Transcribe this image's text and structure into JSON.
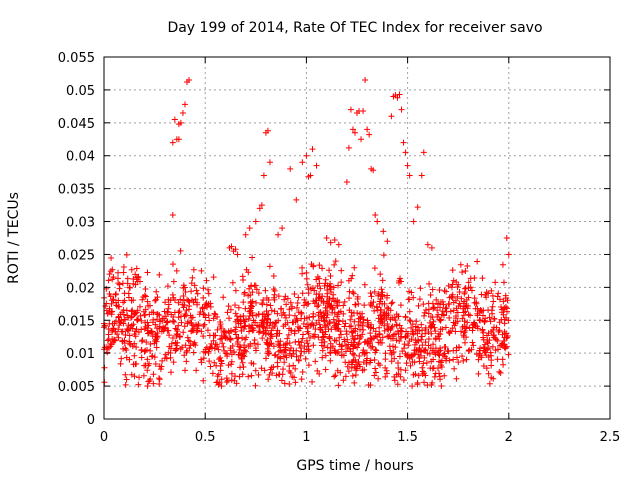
{
  "chart_data": {
    "type": "scatter",
    "title": "Day 199 of 2014, Rate Of TEC Index for receiver savo",
    "xlabel": "GPS time / hours",
    "ylabel": "ROTI / TECUs",
    "xlim": [
      0,
      2.5
    ],
    "ylim": [
      0,
      0.055
    ],
    "xticks": [
      {
        "value": 0,
        "label": "0"
      },
      {
        "value": 0.5,
        "label": "0.5"
      },
      {
        "value": 1,
        "label": "1"
      },
      {
        "value": 1.5,
        "label": "1.5"
      },
      {
        "value": 2,
        "label": "2"
      },
      {
        "value": 2.5,
        "label": "2.5"
      }
    ],
    "yticks": [
      {
        "value": 0,
        "label": "0"
      },
      {
        "value": 0.005,
        "label": "0.005"
      },
      {
        "value": 0.01,
        "label": "0.01"
      },
      {
        "value": 0.015,
        "label": "0.015"
      },
      {
        "value": 0.02,
        "label": "0.02"
      },
      {
        "value": 0.025,
        "label": "0.025"
      },
      {
        "value": 0.03,
        "label": "0.03"
      },
      {
        "value": 0.035,
        "label": "0.035"
      },
      {
        "value": 0.04,
        "label": "0.04"
      },
      {
        "value": 0.045,
        "label": "0.045"
      },
      {
        "value": 0.05,
        "label": "0.05"
      },
      {
        "value": 0.055,
        "label": "0.055"
      }
    ],
    "grid": true,
    "marker": "plus",
    "color": "#ff0000",
    "series": [
      {
        "name": "ROTI",
        "x": [
          0.34,
          0.35,
          0.36,
          0.37,
          0.38,
          0.39,
          0.4,
          0.41,
          0.42,
          0.34,
          0.37,
          0.8,
          0.81,
          0.82,
          0.77,
          0.78,
          0.79,
          0.92,
          0.95,
          0.98,
          1.0,
          1.01,
          1.02,
          1.03,
          1.05,
          0.75,
          0.72,
          0.7,
          1.2,
          1.21,
          1.24,
          1.25,
          1.26,
          1.27,
          1.28,
          1.29,
          1.3,
          1.31,
          1.32,
          1.33,
          1.34,
          1.35,
          1.22,
          1.23,
          1.43,
          1.44,
          1.45,
          1.46,
          1.47,
          1.48,
          1.49,
          1.5,
          1.51,
          1.42,
          1.55,
          1.57,
          1.58,
          1.53,
          0.62,
          0.63,
          0.64,
          0.65,
          0.66,
          0.86,
          0.88,
          1.1,
          1.12,
          1.14,
          1.16,
          1.38,
          1.4,
          1.6,
          1.62,
          1.99,
          2.0
        ],
        "y": [
          0.031,
          0.0455,
          0.0425,
          0.0425,
          0.045,
          0.0465,
          0.0478,
          0.0512,
          0.0515,
          0.042,
          0.0448,
          0.0435,
          0.0438,
          0.039,
          0.032,
          0.0325,
          0.037,
          0.038,
          0.0333,
          0.039,
          0.04,
          0.0368,
          0.037,
          0.041,
          0.0385,
          0.03,
          0.029,
          0.028,
          0.036,
          0.0412,
          0.0435,
          0.0465,
          0.0468,
          0.0425,
          0.0468,
          0.0515,
          0.044,
          0.0432,
          0.038,
          0.0378,
          0.031,
          0.03,
          0.047,
          0.044,
          0.049,
          0.0492,
          0.0488,
          0.0493,
          0.047,
          0.042,
          0.0405,
          0.0385,
          0.037,
          0.046,
          0.0322,
          0.037,
          0.0405,
          0.03,
          0.026,
          0.0262,
          0.0255,
          0.0258,
          0.025,
          0.028,
          0.029,
          0.0275,
          0.0268,
          0.0272,
          0.0265,
          0.0285,
          0.027,
          0.0265,
          0.026,
          0.0275,
          0.025
        ],
        "dense_band": {
          "x_range": [
            0,
            2.0
          ],
          "y_min": 0.005,
          "y_max": 0.027,
          "center": 0.0135,
          "count": 1800
        }
      }
    ]
  }
}
